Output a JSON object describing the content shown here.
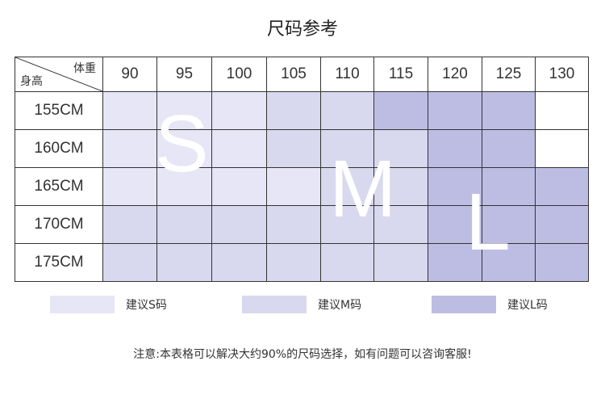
{
  "title": "尺码参考",
  "header": {
    "weight_label": "体重",
    "height_label": "身高",
    "weights": [
      "90",
      "95",
      "100",
      "105",
      "110",
      "115",
      "120",
      "125",
      "130"
    ]
  },
  "rows": [
    {
      "height": "155CM",
      "sizes": [
        "S",
        "S",
        "S",
        "M",
        "M",
        "L",
        "L",
        "L",
        ""
      ]
    },
    {
      "height": "160CM",
      "sizes": [
        "S",
        "S",
        "S",
        "M",
        "M",
        "M",
        "L",
        "L",
        ""
      ]
    },
    {
      "height": "165CM",
      "sizes": [
        "S",
        "S",
        "S",
        "S",
        "M",
        "M",
        "L",
        "L",
        "L"
      ]
    },
    {
      "height": "170CM",
      "sizes": [
        "M",
        "M",
        "M",
        "M",
        "M",
        "M",
        "L",
        "L",
        "L"
      ]
    },
    {
      "height": "175CM",
      "sizes": [
        "M",
        "M",
        "M",
        "M",
        "M",
        "M",
        "L",
        "L",
        "L"
      ]
    }
  ],
  "overlay_letters": {
    "S": "S",
    "M": "M",
    "L": "L"
  },
  "colors": {
    "S": "#e6e6f6",
    "M": "#d8d8ee",
    "L": "#bdbde4"
  },
  "legend": [
    {
      "size": "S",
      "label": "建议S码"
    },
    {
      "size": "M",
      "label": "建议M码"
    },
    {
      "size": "L",
      "label": "建议L码"
    }
  ],
  "note": "注意:本表格可以解决大约90%的尺码选择，如有问题可以咨询客服!"
}
